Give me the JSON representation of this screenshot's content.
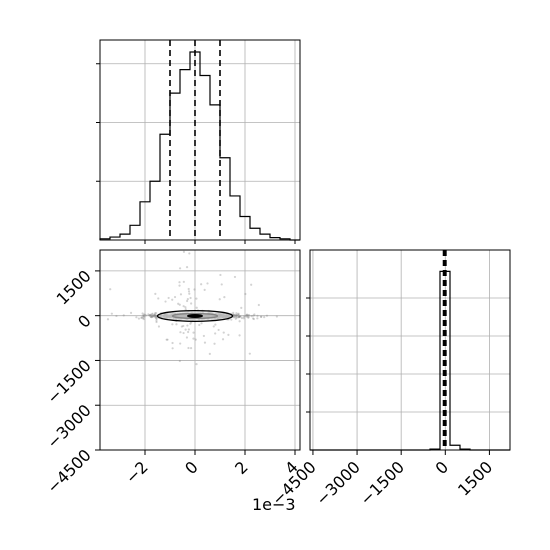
{
  "chart_data": [
    {
      "type": "histogram",
      "panel": "top-left",
      "variable": "param_1",
      "x_scale_label": "",
      "xlim": [
        -0.0038,
        0.0042
      ],
      "ylim": [
        0,
        0.0032
      ],
      "bin_edges": [
        -0.0038,
        -0.0034,
        -0.003,
        -0.0026,
        -0.0022,
        -0.0018,
        -0.0014,
        -0.001,
        -0.0006,
        -0.0002,
        0.0002,
        0.0006,
        0.001,
        0.0014,
        0.0018,
        0.0022,
        0.0026,
        0.003,
        0.0034,
        0.0038,
        0.0042
      ],
      "counts": [
        2e-05,
        5e-05,
        0.0001,
        0.00025,
        0.00065,
        0.001,
        0.0018,
        0.0025,
        0.0029,
        0.0032,
        0.0028,
        0.0023,
        0.0014,
        0.00075,
        0.0004,
        0.0002,
        0.0001,
        4e-05,
        2e-05,
        0.0
      ],
      "quantiles": [
        -0.001,
        0.0,
        0.001
      ],
      "grid": true
    },
    {
      "type": "scatter",
      "panel": "bottom-left",
      "x_variable": "param_1",
      "y_variable": "param_2",
      "xlim": [
        -0.0038,
        0.0042
      ],
      "ylim": [
        -4500,
        2200
      ],
      "xticks": [
        -2,
        0,
        2,
        4
      ],
      "xtick_labels": [
        "−2",
        "0",
        "2",
        "4"
      ],
      "x_offset_text": "1e−3",
      "yticks": [
        -4500,
        -3000,
        -1500,
        0,
        1500
      ],
      "ytick_labels": [
        "−4500",
        "−3000",
        "−1500",
        "0",
        "1500"
      ],
      "contours": [
        {
          "level": "inner",
          "center": [
            0.0,
            -10
          ],
          "rx": 0.0009,
          "ry": 80
        },
        {
          "level": "outer",
          "center": [
            0.0,
            -10
          ],
          "rx": 0.0015,
          "ry": 180
        }
      ],
      "grid": true
    },
    {
      "type": "histogram",
      "panel": "bottom-right",
      "variable": "param_2",
      "xlim": [
        -4600,
        2200
      ],
      "ylim": [
        0,
        1.0
      ],
      "xticks": [
        -4500,
        -3000,
        -1500,
        0,
        1500
      ],
      "xtick_labels": [
        "−4500",
        "−3000",
        "−1500",
        "0",
        "1500"
      ],
      "bin_edges": [
        -4600,
        -4260,
        -3920,
        -3580,
        -3240,
        -2900,
        -2560,
        -2220,
        -1880,
        -1540,
        -1200,
        -860,
        -520,
        -180,
        160,
        500,
        840,
        1180,
        1520,
        1860,
        2200
      ],
      "counts": [
        0,
        0,
        0,
        0,
        0,
        0,
        0,
        0,
        0,
        0,
        0,
        0,
        0.005,
        0.94,
        0.025,
        0.005,
        0,
        0,
        0,
        0
      ],
      "quantiles": [
        -60,
        -20,
        20
      ],
      "grid": true
    }
  ]
}
